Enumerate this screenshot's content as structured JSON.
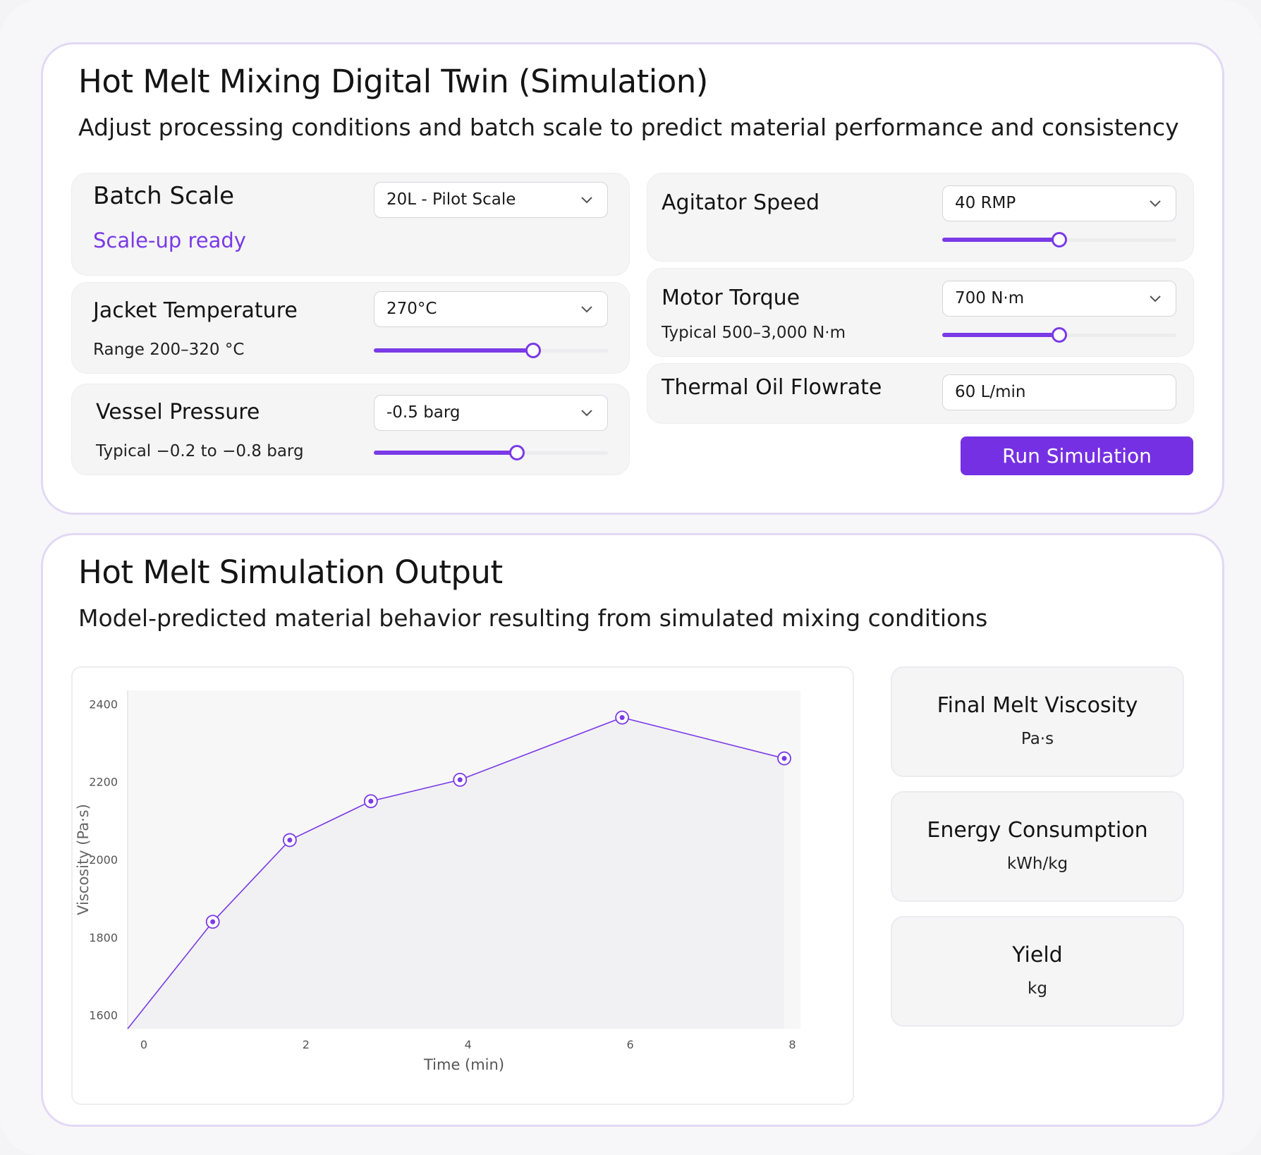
{
  "input_card": {
    "title": "Hot Melt Mixing Digital Twin (Simulation)",
    "subtitle": "Adjust processing conditions and batch scale to predict material performance and consistency"
  },
  "batch_scale": {
    "label": "Batch Scale",
    "status": "Scale-up ready",
    "selected": "20L - Pilot Scale"
  },
  "jacket_temperature": {
    "label": "Jacket Temperature",
    "hint": "Range 200–320 °C",
    "selected": "270°C",
    "slider_fraction": 0.68
  },
  "vessel_pressure": {
    "label": "Vessel Pressure",
    "hint": "Typical −0.2 to −0.8 barg",
    "selected": "-0.5 barg",
    "slider_fraction": 0.61
  },
  "agitator_speed": {
    "label": "Agitator Speed",
    "selected": "40 RMP",
    "slider_fraction": 0.5
  },
  "motor_torque": {
    "label": "Motor Torque",
    "hint": "Typical 500–3,000 N·m",
    "selected": "700 N·m",
    "slider_fraction": 0.5
  },
  "thermal_oil_flowrate": {
    "label": "Thermal Oil Flowrate",
    "value": "60 L/min"
  },
  "run_button": {
    "label": "Run Simulation"
  },
  "output_card": {
    "title": "Hot Melt Simulation Output",
    "subtitle": "Model-predicted material behavior resulting from simulated mixing conditions"
  },
  "kpis": [
    {
      "title": "Final Melt Viscosity",
      "unit": "Pa·s"
    },
    {
      "title": "Energy Consumption",
      "unit": "kWh/kg"
    },
    {
      "title": "Yield",
      "unit": "kg"
    }
  ],
  "colors": {
    "accent": "#7530e4",
    "card_border": "#e1d9f5",
    "panel_bg": "#f5f5f6"
  },
  "chart_data": {
    "type": "line",
    "xlabel": "Time (min)",
    "ylabel": "Viscosity (Pa·s)",
    "x_ticks": [
      0,
      2,
      4,
      6,
      8
    ],
    "y_ticks": [
      1600,
      1800,
      2000,
      2200,
      2400
    ],
    "xlim": [
      -0.2,
      8.1
    ],
    "ylim": [
      1565,
      2435
    ],
    "grid": false,
    "series": [
      {
        "x": [
          -0.2,
          0.85,
          1.8,
          2.8,
          3.9,
          5.9,
          7.9
        ],
        "y": [
          1565,
          1840,
          2050,
          2150,
          2205,
          2365,
          2260
        ],
        "markers_from_index": 1
      }
    ]
  }
}
